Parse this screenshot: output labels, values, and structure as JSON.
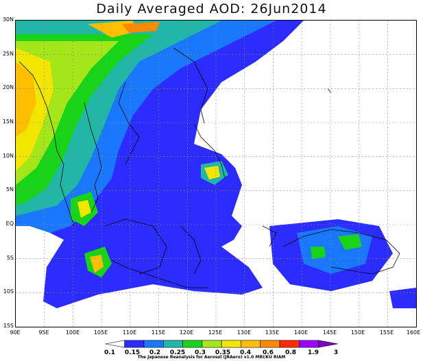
{
  "title": "Daily Averaged AOD: 26Jun2014",
  "map": {
    "lon_range": [
      90,
      160
    ],
    "lat_range": [
      -15,
      30
    ],
    "x_ticks": [
      "90E",
      "95E",
      "100E",
      "105E",
      "110E",
      "115E",
      "120E",
      "125E",
      "130E",
      "135E",
      "140E",
      "145E",
      "150E",
      "155E",
      "160E"
    ],
    "y_ticks": [
      "30N",
      "25N",
      "20N",
      "15N",
      "10N",
      "5N",
      "EQ",
      "5S",
      "10S",
      "15S"
    ],
    "grid": "dotted"
  },
  "legend": {
    "levels": [
      "0.1",
      "0.15",
      "0.2",
      "0.25",
      "0.3",
      "0.35",
      "0.4",
      "0.6",
      "0.8",
      "1.9",
      "3"
    ],
    "colors": [
      "#ffffff",
      "#2c2cff",
      "#1a78ff",
      "#21b6a6",
      "#19d319",
      "#a5e51a",
      "#f2e600",
      "#ffbf00",
      "#ff8a00",
      "#ff2a00",
      "#9b00ff",
      "#7a00c8"
    ]
  },
  "credit": "The Japanese Reanalysis for Aerosol (JRAero) v1.0 MRI/KU RIAM"
}
